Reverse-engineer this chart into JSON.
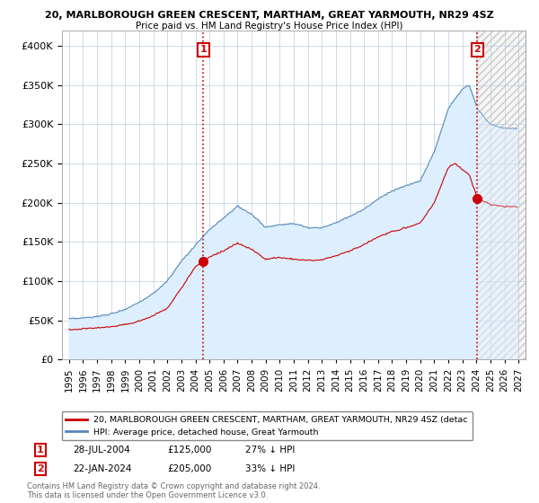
{
  "title1": "20, MARLBOROUGH GREEN CRESCENT, MARTHAM, GREAT YARMOUTH, NR29 4SZ",
  "title2": "Price paid vs. HM Land Registry's House Price Index (HPI)",
  "legend_line1": "20, MARLBOROUGH GREEN CRESCENT, MARTHAM, GREAT YARMOUTH, NR29 4SZ (detac",
  "legend_line2": "HPI: Average price, detached house, Great Yarmouth",
  "annotation1_date": "28-JUL-2004",
  "annotation1_price": "£125,000",
  "annotation1_hpi": "27% ↓ HPI",
  "annotation2_date": "22-JAN-2024",
  "annotation2_price": "£205,000",
  "annotation2_hpi": "33% ↓ HPI",
  "footer1": "Contains HM Land Registry data © Crown copyright and database right 2024.",
  "footer2": "This data is licensed under the Open Government Licence v3.0.",
  "sale1_year": 2004.57,
  "sale1_value": 125000,
  "sale2_year": 2024.07,
  "sale2_value": 205000,
  "hpi_color": "#5588bb",
  "hpi_fill_color": "#ddeeff",
  "price_color": "#cc0000",
  "annotation_box_color": "#cc0000",
  "background_color": "#ffffff",
  "grid_color": "#bbccdd",
  "future_hatch_color": "#bbbbbb",
  "ylim": [
    0,
    420000
  ],
  "xlim_start": 1994.5,
  "xlim_end": 2027.5,
  "yticks": [
    0,
    50000,
    100000,
    150000,
    200000,
    250000,
    300000,
    350000,
    400000
  ],
  "xticks": [
    1995,
    1996,
    1997,
    1998,
    1999,
    2000,
    2001,
    2002,
    2003,
    2004,
    2005,
    2006,
    2007,
    2008,
    2009,
    2010,
    2011,
    2012,
    2013,
    2014,
    2015,
    2016,
    2017,
    2018,
    2019,
    2020,
    2021,
    2022,
    2023,
    2024,
    2025,
    2026,
    2027
  ]
}
